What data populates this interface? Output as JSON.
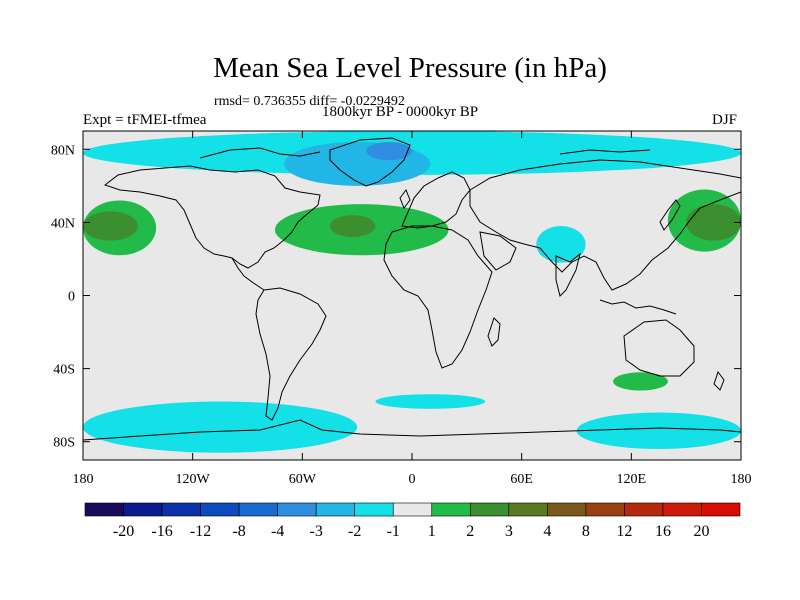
{
  "title": "Mean Sea Level Pressure (in hPa)",
  "stats": "rmsd= 0.736355 diff= -0.0229492",
  "experiment": "Expt = tFMEI-tfmea",
  "period": "1800kyr BP - 0000kyr BP",
  "season": "DJF",
  "lat_ticks": [
    {
      "label": "80N",
      "lat": 80
    },
    {
      "label": "40N",
      "lat": 40
    },
    {
      "label": "0",
      "lat": 0
    },
    {
      "label": "40S",
      "lat": -40
    },
    {
      "label": "80S",
      "lat": -80
    }
  ],
  "lon_ticks": [
    {
      "label": "180",
      "lon": -180
    },
    {
      "label": "120W",
      "lon": -120
    },
    {
      "label": "60W",
      "lon": -60
    },
    {
      "label": "0",
      "lon": 0
    },
    {
      "label": "60E",
      "lon": 60
    },
    {
      "label": "120E",
      "lon": 120
    },
    {
      "label": "180",
      "lon": 180
    }
  ],
  "colorbar": {
    "labels": [
      "-20",
      "-16",
      "-12",
      "-8",
      "-4",
      "-3",
      "-2",
      "-1",
      "1",
      "2",
      "3",
      "4",
      "8",
      "12",
      "16",
      "20"
    ],
    "colors": [
      "#1a0a5e",
      "#0b1a8c",
      "#0a32a8",
      "#0c4bbd",
      "#1a6bd1",
      "#2f8ee0",
      "#22b6e6",
      "#14e0e8",
      "#e8e8e8",
      "#22bb4a",
      "#3c8f2e",
      "#5a7a22",
      "#7a5a1c",
      "#9a4014",
      "#b52a0e",
      "#cc1a08",
      "#d80c04"
    ]
  },
  "background_color": "#e8e8e8",
  "regions": [
    {
      "name": "arctic-negative",
      "value_class": "-1 to -2",
      "color": "#14e0e8",
      "lon_min": -180,
      "lon_max": 180,
      "lat_min": 66,
      "lat_max": 90
    },
    {
      "name": "greenland-low",
      "value_class": "-2 to -3",
      "color": "#22b6e6",
      "lon_min": -70,
      "lon_max": 10,
      "lat_min": 60,
      "lat_max": 84
    },
    {
      "name": "greenland-core",
      "value_class": "-3 to -4",
      "color": "#2f8ee0",
      "lon_min": -25,
      "lon_max": 0,
      "lat_min": 74,
      "lat_max": 84
    },
    {
      "name": "north-pacific-high",
      "value_class": "1 to 2",
      "color": "#22bb4a",
      "lon_min": -180,
      "lon_max": -140,
      "lat_min": 22,
      "lat_max": 52
    },
    {
      "name": "north-pacific-core",
      "value_class": "2 to 3",
      "color": "#3c8f2e",
      "lon_min": -180,
      "lon_max": -150,
      "lat_min": 30,
      "lat_max": 46
    },
    {
      "name": "north-atlantic-high",
      "value_class": "1 to 2",
      "color": "#22bb4a",
      "lon_min": -75,
      "lon_max": 20,
      "lat_min": 22,
      "lat_max": 50
    },
    {
      "name": "north-atlantic-core",
      "value_class": "2 to 3",
      "color": "#3c8f2e",
      "lon_min": -45,
      "lon_max": -20,
      "lat_min": 32,
      "lat_max": 44
    },
    {
      "name": "west-pacific-high",
      "value_class": "1 to 2",
      "color": "#22bb4a",
      "lon_min": 140,
      "lon_max": 180,
      "lat_min": 24,
      "lat_max": 58
    },
    {
      "name": "west-pacific-core",
      "value_class": "2 to 3",
      "color": "#3c8f2e",
      "lon_min": 150,
      "lon_max": 180,
      "lat_min": 30,
      "lat_max": 50
    },
    {
      "name": "india-low",
      "value_class": "-1 to -2",
      "color": "#14e0e8",
      "lon_min": 68,
      "lon_max": 95,
      "lat_min": 18,
      "lat_max": 38
    },
    {
      "name": "south-indian-high",
      "value_class": "1 to 2",
      "color": "#22bb4a",
      "lon_min": 110,
      "lon_max": 140,
      "lat_min": -52,
      "lat_max": -42
    },
    {
      "name": "southern-ocean-low-west",
      "value_class": "-1 to -2",
      "color": "#14e0e8",
      "lon_min": -180,
      "lon_max": -30,
      "lat_min": -86,
      "lat_max": -58
    },
    {
      "name": "southern-ocean-low-mid",
      "value_class": "-1 to -2",
      "color": "#14e0e8",
      "lon_min": -20,
      "lon_max": 40,
      "lat_min": -62,
      "lat_max": -54
    },
    {
      "name": "southern-ocean-low-east",
      "value_class": "-1 to -2",
      "color": "#14e0e8",
      "lon_min": 90,
      "lon_max": 180,
      "lat_min": -84,
      "lat_max": -64
    }
  ]
}
